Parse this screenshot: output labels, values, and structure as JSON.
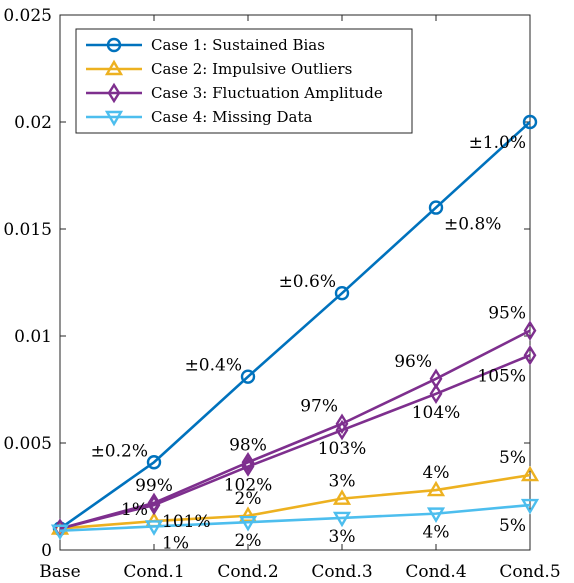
{
  "chart_data": {
    "type": "line",
    "categories": [
      "Base",
      "Cond.1",
      "Cond.2",
      "Cond.3",
      "Cond.4",
      "Cond.5"
    ],
    "ylim": [
      0,
      0.025
    ],
    "yticks": [
      "0",
      "0.005",
      "0.01",
      "0.015",
      "0.02",
      "0.025"
    ],
    "grid": false,
    "legend_position": "top-left",
    "series": [
      {
        "name": "Case 1: Sustained Bias",
        "color": "#0072BD",
        "marker": "circle",
        "values": [
          0.001,
          0.0041,
          0.0081,
          0.012,
          0.016,
          0.02
        ]
      },
      {
        "name": "Case 2: Impulsive Outliers",
        "color": "#EDB120",
        "marker": "triangle-up",
        "values": [
          0.001,
          0.00135,
          0.0016,
          0.0024,
          0.0028,
          0.0035
        ]
      },
      {
        "name": "Case 3: Fluctuation Amplitude",
        "color": "#7E2F8E",
        "marker": "diamond",
        "values": [
          0.001,
          0.0022,
          0.0041,
          0.0059,
          0.008,
          0.01025
        ]
      },
      {
        "name": "",
        "color": "#7E2F8E",
        "marker": "diamond",
        "values": [
          0.001,
          0.0021,
          0.0039,
          0.0056,
          0.0073,
          0.0091
        ]
      },
      {
        "name": "Case 4: Missing Data",
        "color": "#4DBEEE",
        "marker": "triangle-down",
        "values": [
          0.0009,
          0.0011,
          0.0013,
          0.0015,
          0.0017,
          0.0021
        ]
      }
    ],
    "annotations": [
      {
        "text": "±0.2%",
        "x": 1,
        "y": 0.0041,
        "pos": "left"
      },
      {
        "text": "±0.4%",
        "x": 2,
        "y": 0.0081,
        "pos": "left"
      },
      {
        "text": "±0.6%",
        "x": 3,
        "y": 0.012,
        "pos": "left"
      },
      {
        "text": "±0.8%",
        "x": 4,
        "y": 0.016,
        "pos": "below-right"
      },
      {
        "text": "±1.0%",
        "x": 5,
        "y": 0.02,
        "pos": "below-left"
      },
      {
        "text": "99%",
        "x": 1,
        "y": 0.0022,
        "pos": "above"
      },
      {
        "text": "101%",
        "x": 1,
        "y": 0.0021,
        "pos": "below-right"
      },
      {
        "text": "98%",
        "x": 2,
        "y": 0.0041,
        "pos": "above"
      },
      {
        "text": "102%",
        "x": 2,
        "y": 0.0039,
        "pos": "below"
      },
      {
        "text": "97%",
        "x": 3,
        "y": 0.0059,
        "pos": "above-left"
      },
      {
        "text": "103%",
        "x": 3,
        "y": 0.0056,
        "pos": "below"
      },
      {
        "text": "96%",
        "x": 4,
        "y": 0.008,
        "pos": "above-left"
      },
      {
        "text": "104%",
        "x": 4,
        "y": 0.0073,
        "pos": "below"
      },
      {
        "text": "95%",
        "x": 5,
        "y": 0.01025,
        "pos": "above-left"
      },
      {
        "text": "105%",
        "x": 5,
        "y": 0.0091,
        "pos": "below-left"
      },
      {
        "text": "1%",
        "x": 1,
        "y": 0.00135,
        "pos": "left"
      },
      {
        "text": "2%",
        "x": 2,
        "y": 0.0016,
        "pos": "above"
      },
      {
        "text": "3%",
        "x": 3,
        "y": 0.0024,
        "pos": "above"
      },
      {
        "text": "4%",
        "x": 4,
        "y": 0.0028,
        "pos": "above"
      },
      {
        "text": "5%",
        "x": 5,
        "y": 0.0035,
        "pos": "above-left"
      },
      {
        "text": "1%",
        "x": 1,
        "y": 0.0011,
        "pos": "below-right"
      },
      {
        "text": "2%",
        "x": 2,
        "y": 0.0013,
        "pos": "below"
      },
      {
        "text": "3%",
        "x": 3,
        "y": 0.0015,
        "pos": "below"
      },
      {
        "text": "4%",
        "x": 4,
        "y": 0.0017,
        "pos": "below"
      },
      {
        "text": "5%",
        "x": 5,
        "y": 0.0021,
        "pos": "below-left"
      }
    ]
  }
}
